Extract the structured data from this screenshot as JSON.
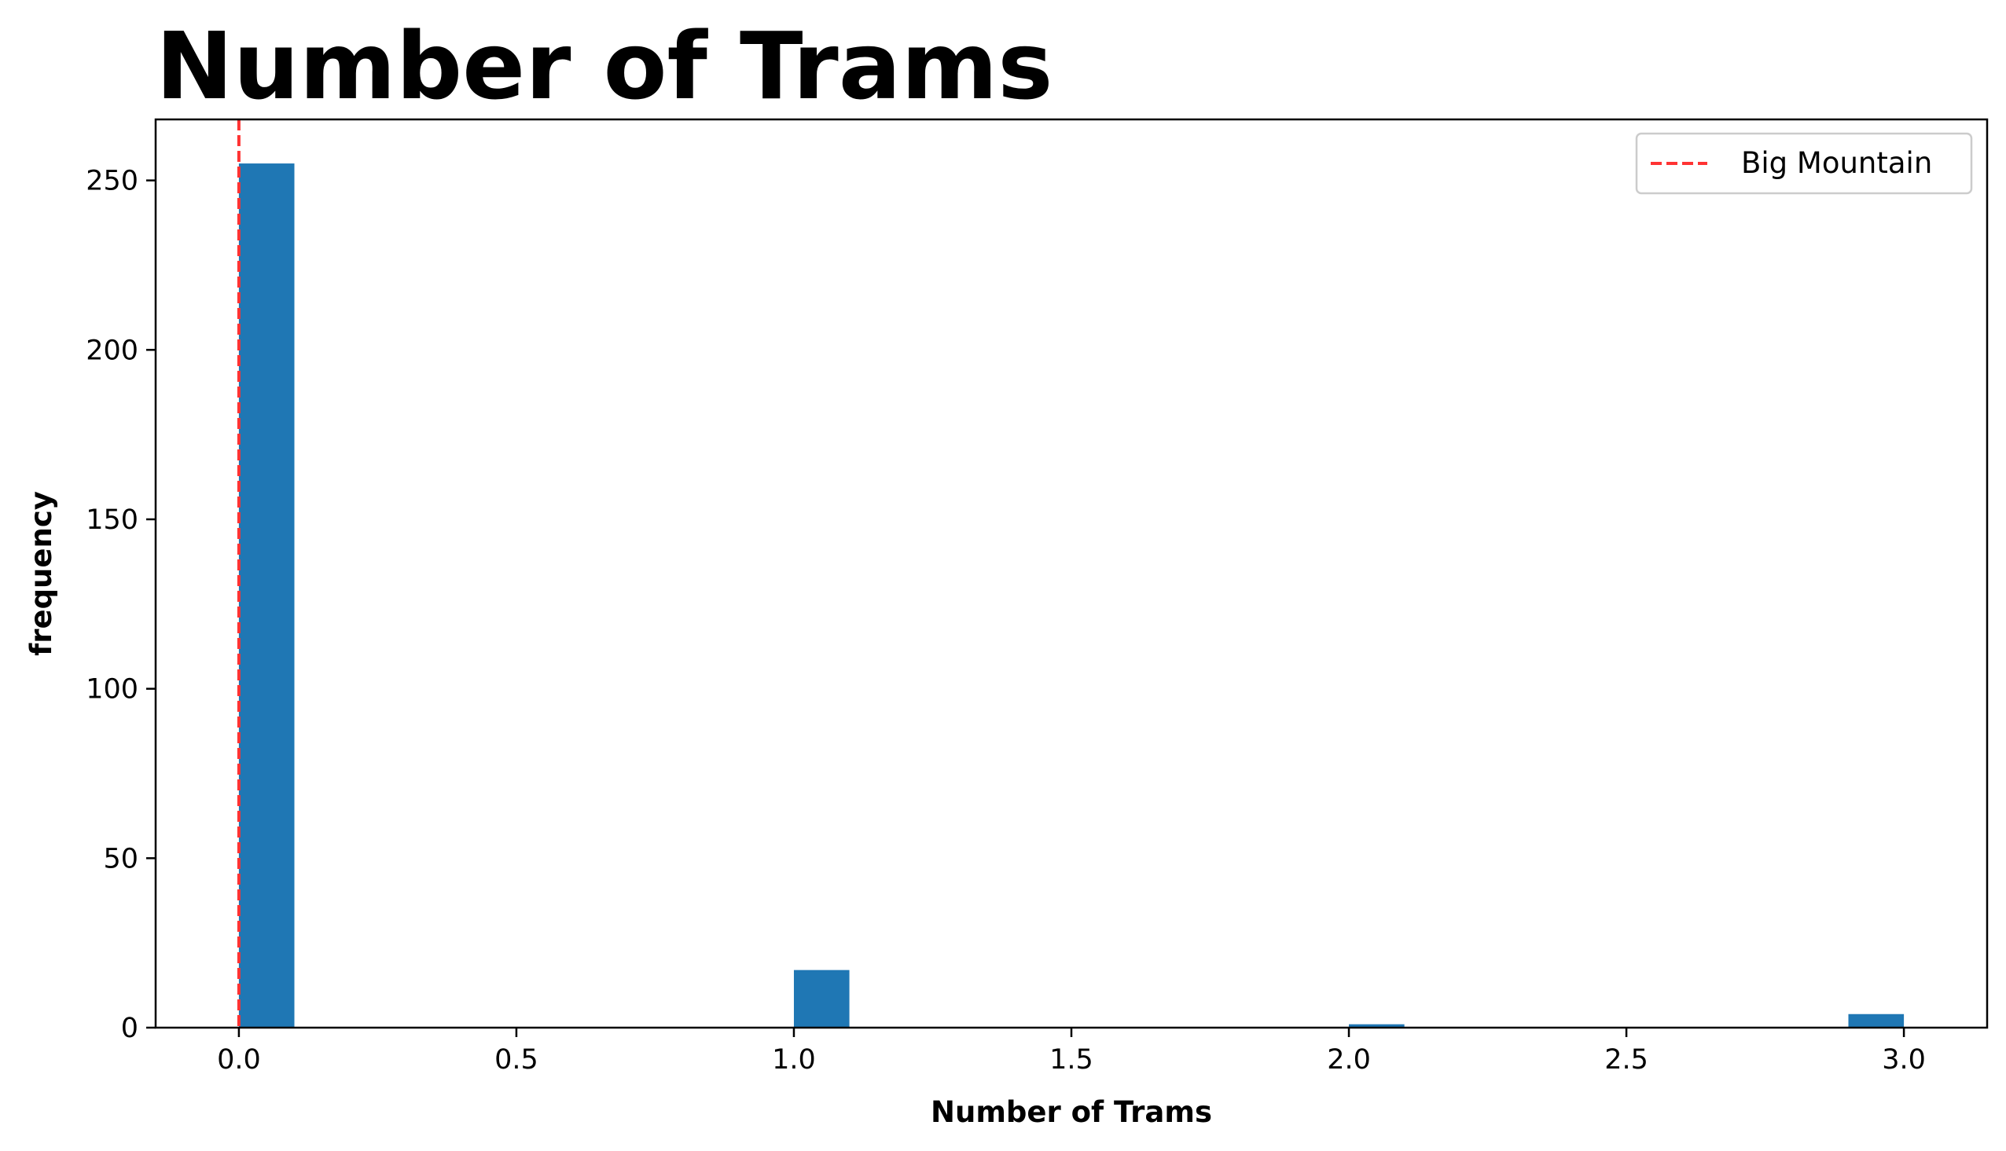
{
  "chart_data": {
    "type": "bar",
    "title": "Number of Trams",
    "xlabel": "Number of Trams",
    "ylabel": "frequency",
    "xlim": [
      -0.15,
      3.15
    ],
    "ylim": [
      0,
      268
    ],
    "xticks": [
      "0.0",
      "0.5",
      "1.0",
      "1.5",
      "2.0",
      "2.5",
      "3.0"
    ],
    "xtick_values": [
      0,
      0.5,
      1.0,
      1.5,
      2.0,
      2.5,
      3.0
    ],
    "yticks": [
      "0",
      "50",
      "100",
      "150",
      "200",
      "250"
    ],
    "ytick_values": [
      0,
      50,
      100,
      150,
      200,
      250
    ],
    "bins": [
      {
        "x0": 0.0,
        "x1": 0.1,
        "count": 255
      },
      {
        "x0": 1.0,
        "x1": 1.1,
        "count": 17
      },
      {
        "x0": 2.0,
        "x1": 2.1,
        "count": 1
      },
      {
        "x0": 2.9,
        "x1": 3.0,
        "count": 4
      }
    ],
    "bar_color": "#1f77b4",
    "reference_line": {
      "name": "Big Mountain",
      "x": 0,
      "color": "#ff3333",
      "style": "dashed"
    },
    "legend": {
      "position": "top-right",
      "entries": [
        "Big Mountain"
      ]
    },
    "grid": false
  }
}
